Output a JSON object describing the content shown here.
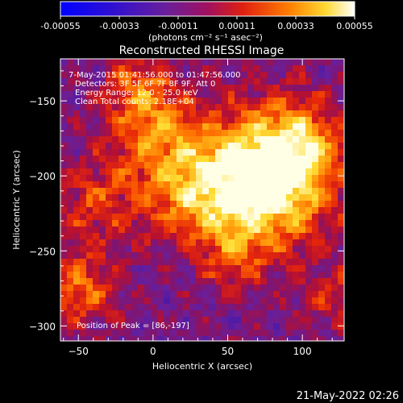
{
  "chart_data": {
    "type": "heatmap",
    "title": "Reconstructed RHESSI Image",
    "xlabel": "Heliocentric X (arcsec)",
    "ylabel": "Heliocentric Y (arcsec)",
    "x_ticks": [
      -50,
      0,
      50,
      100
    ],
    "y_ticks": [
      -150,
      -200,
      -250,
      -300
    ],
    "xlim": [
      -62,
      128
    ],
    "ylim": [
      -310,
      -122
    ],
    "colorbar": {
      "min": -0.00055,
      "max": 0.00055,
      "ticks": [
        "-0.00055",
        "-0.00033",
        "-0.00011",
        "0.00011",
        "0.00033",
        "0.00055"
      ],
      "unit_label": "(photons cm⁻² s⁻¹ asec⁻²)"
    },
    "peak": {
      "x": 86,
      "y": -197
    },
    "colors": [
      "#0000ff",
      "#4b1aa8",
      "#6a1f9a",
      "#b81030",
      "#ff2a00",
      "#ff8c00",
      "#ffdd33",
      "#ffffff"
    ]
  },
  "info": {
    "line1": "7-May-2015 01:41:56.000 to 01:47:56.000",
    "line2": "Detectors: 3F 5F 6F 7F 8F 9F, Att 0",
    "line3": "Energy Range: 12.0 - 25.0 keV",
    "line4": "Clean     Total counts: 2.18E+04"
  },
  "peak_text": "Position of Peak = [86,-197]",
  "timestamp": "21-May-2022 02:26"
}
